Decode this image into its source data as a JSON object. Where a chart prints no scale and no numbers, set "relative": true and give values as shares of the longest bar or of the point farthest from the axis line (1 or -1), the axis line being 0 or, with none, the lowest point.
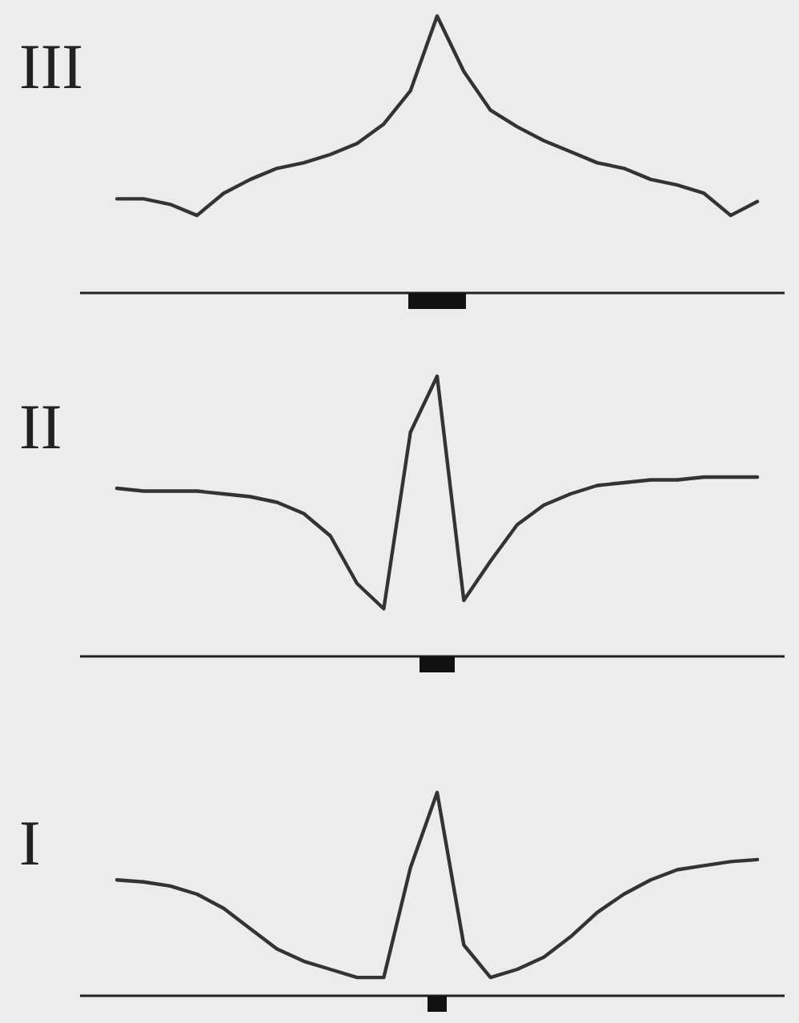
{
  "chart_data": [
    {
      "type": "line",
      "title": "III",
      "relative": true,
      "color": "#333333",
      "categories": [
        null,
        null,
        null,
        null,
        null,
        null,
        null,
        null,
        null,
        null,
        null,
        null,
        null,
        null,
        null,
        null,
        null,
        null,
        null,
        null,
        null,
        null,
        null,
        null,
        null
      ],
      "values": [
        0.34,
        0.34,
        0.32,
        0.28,
        0.36,
        0.41,
        0.45,
        0.47,
        0.5,
        0.54,
        0.61,
        0.73,
        1,
        0.8,
        0.66,
        0.6,
        0.55,
        0.51,
        0.47,
        0.45,
        0.41,
        0.39,
        0.36,
        0.28,
        0.33
      ]
    },
    {
      "type": "line",
      "title": "II",
      "relative": true,
      "color": "#333333",
      "categories": [
        null,
        null,
        null,
        null,
        null,
        null,
        null,
        null,
        null,
        null,
        null,
        null,
        null,
        null,
        null,
        null,
        null,
        null,
        null,
        null,
        null,
        null,
        null,
        null,
        null
      ],
      "values": [
        0.6,
        0.59,
        0.59,
        0.59,
        0.58,
        0.57,
        0.55,
        0.51,
        0.43,
        0.26,
        0.17,
        0.8,
        1,
        0.2,
        0.34,
        0.47,
        0.54,
        0.58,
        0.61,
        0.62,
        0.63,
        0.63,
        0.64,
        0.64,
        0.64
      ]
    },
    {
      "type": "line",
      "title": "I",
      "relative": true,
      "color": "#333333",
      "categories": [
        null,
        null,
        null,
        null,
        null,
        null,
        null,
        null,
        null,
        null,
        null,
        null,
        null,
        null,
        null,
        null,
        null,
        null,
        null,
        null,
        null,
        null,
        null,
        null,
        null
      ],
      "values": [
        0.57,
        0.56,
        0.54,
        0.5,
        0.43,
        0.33,
        0.23,
        0.17,
        0.13,
        0.09,
        0.09,
        0.63,
        1,
        0.25,
        0.09,
        0.13,
        0.19,
        0.29,
        0.41,
        0.5,
        0.57,
        0.62,
        0.64,
        0.66,
        0.67
      ]
    }
  ]
}
